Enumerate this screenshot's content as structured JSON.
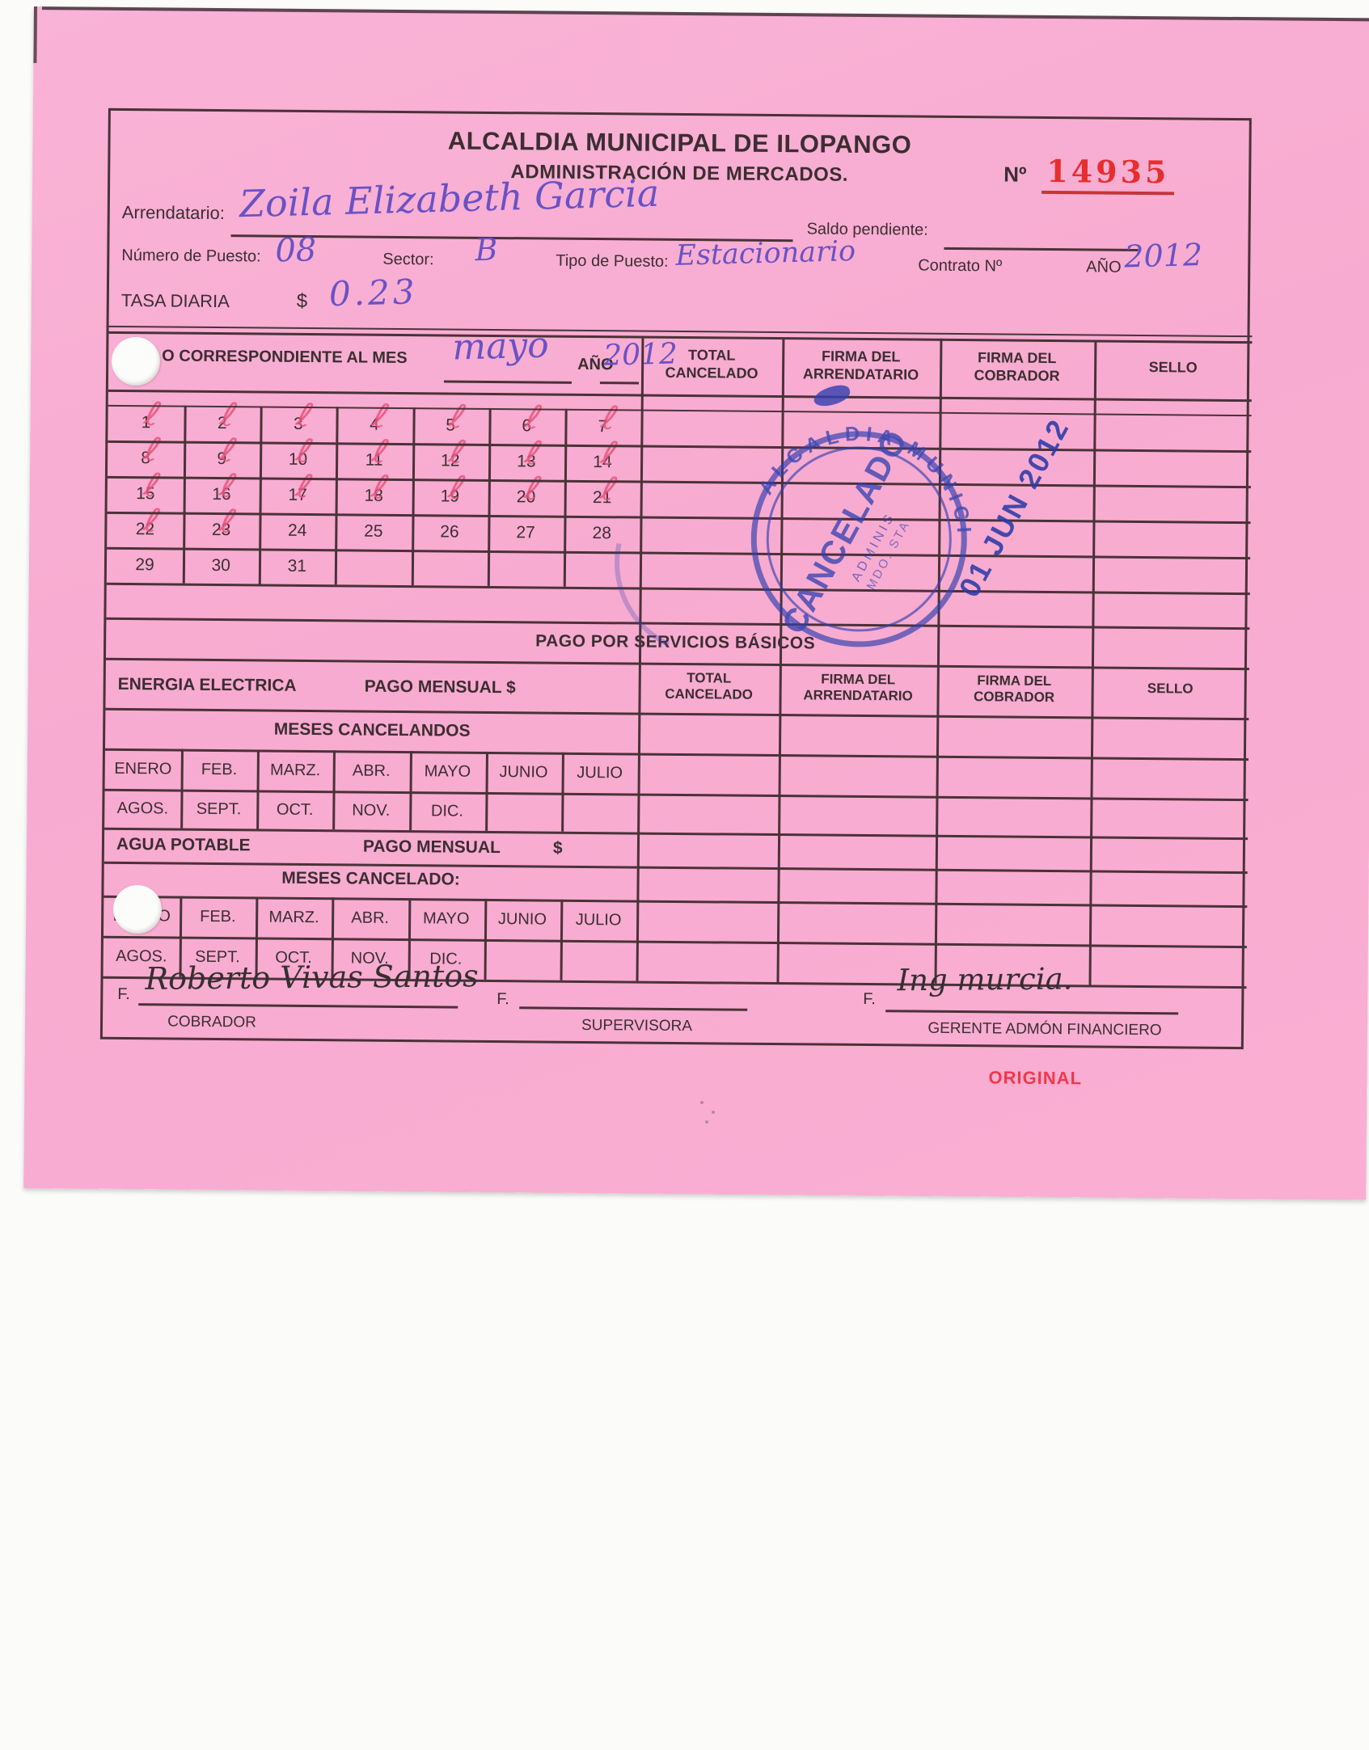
{
  "header": {
    "title": "ALCALDIA MUNICIPAL DE ILOPANGO",
    "subtitle": "ADMINISTRACIÓN DE MERCADOS.",
    "number_label": "Nº",
    "number_value": "14935"
  },
  "fields": {
    "arrendatario_label": "Arrendatario:",
    "arrendatario_value": "Zoila Elizabeth Garcia",
    "saldo_pendiente_label": "Saldo pendiente:",
    "numero_puesto_label": "Número de Puesto:",
    "numero_puesto_value": "08",
    "sector_label": "Sector:",
    "sector_value": "B",
    "tipo_puesto_label": "Tipo de Puesto:",
    "tipo_puesto_value": "Estacionario",
    "contrato_label": "Contrato Nº",
    "ano_label": "AÑO",
    "ano_value": "2012",
    "tasa_diaria_label": "TASA DIARIA",
    "currency_symbol": "$",
    "tasa_diaria_value": "0.23"
  },
  "table_columns": [
    "TOTAL\nCANCELADO",
    "FIRMA DEL\nARRENDATARIO",
    "FIRMA DEL\nCOBRADOR",
    "SELLO"
  ],
  "daily_table": {
    "period_label": "O CORRESPONDIENTE AL MES",
    "period_month_value": "mayo",
    "period_year_label": "AÑO",
    "period_year_value": "2012",
    "check_glyph": "ℓ",
    "days": [
      1,
      2,
      3,
      4,
      5,
      6,
      7,
      8,
      9,
      10,
      11,
      12,
      13,
      14,
      15,
      16,
      17,
      18,
      19,
      20,
      21,
      22,
      23,
      24,
      25,
      26,
      27,
      28,
      29,
      30,
      31,
      "",
      "",
      "",
      ""
    ],
    "checked_days": [
      1,
      2,
      3,
      4,
      5,
      6,
      7,
      8,
      9,
      10,
      11,
      12,
      13,
      14,
      15,
      16,
      17,
      18,
      19,
      20,
      21,
      22,
      23
    ]
  },
  "services_table": {
    "section_title": "PAGO POR SERVICIOS BÁSICOS",
    "energia_label": "ENERGIA ELECTRICA",
    "pago_mensual_label": "PAGO MENSUAL $",
    "meses_cancelandos_label": "MESES CANCELANDOS",
    "agua_label": "AGUA POTABLE",
    "agua_pago_mensual_label": "PAGO MENSUAL",
    "agua_currency": "$",
    "meses_cancelado_label": "MESES CANCELADO:",
    "months_top": [
      "ENERO",
      "FEB.",
      "MARZ.",
      "ABR.",
      "MAYO",
      "JUNIO",
      "JULIO"
    ],
    "months_bottom": [
      "AGOS.",
      "SEPT.",
      "OCT.",
      "NOV.",
      "DIC.",
      "",
      ""
    ]
  },
  "signatures": {
    "f_label": "F.",
    "cobrador_value": "Roberto Vivas Santos",
    "cobrador_label": "COBRADOR",
    "supervisora_label": "SUPERVISORA",
    "gerente_value": "Ing murcia.",
    "gerente_label": "GERENTE ADMÓN FINANCIERO"
  },
  "stamp": {
    "ring_text": "ALCALDIA MUNICI",
    "main_text": "CANCELADO",
    "small_text_1": "ADMINIS",
    "small_text_2": "MDO. STA",
    "date_text": "01 JUN 2012"
  },
  "footer": {
    "original_label": "ORIGINAL"
  },
  "colors": {
    "paper_pink": "#f8abd0",
    "line_dark": "#4a3238",
    "ink_purple": "#6a52c4",
    "ink_black": "#35302f",
    "check_red": "#e8557e",
    "number_red": "#e62e2e",
    "stamp_blue": "#3140b0",
    "original_red": "#f0394a"
  }
}
